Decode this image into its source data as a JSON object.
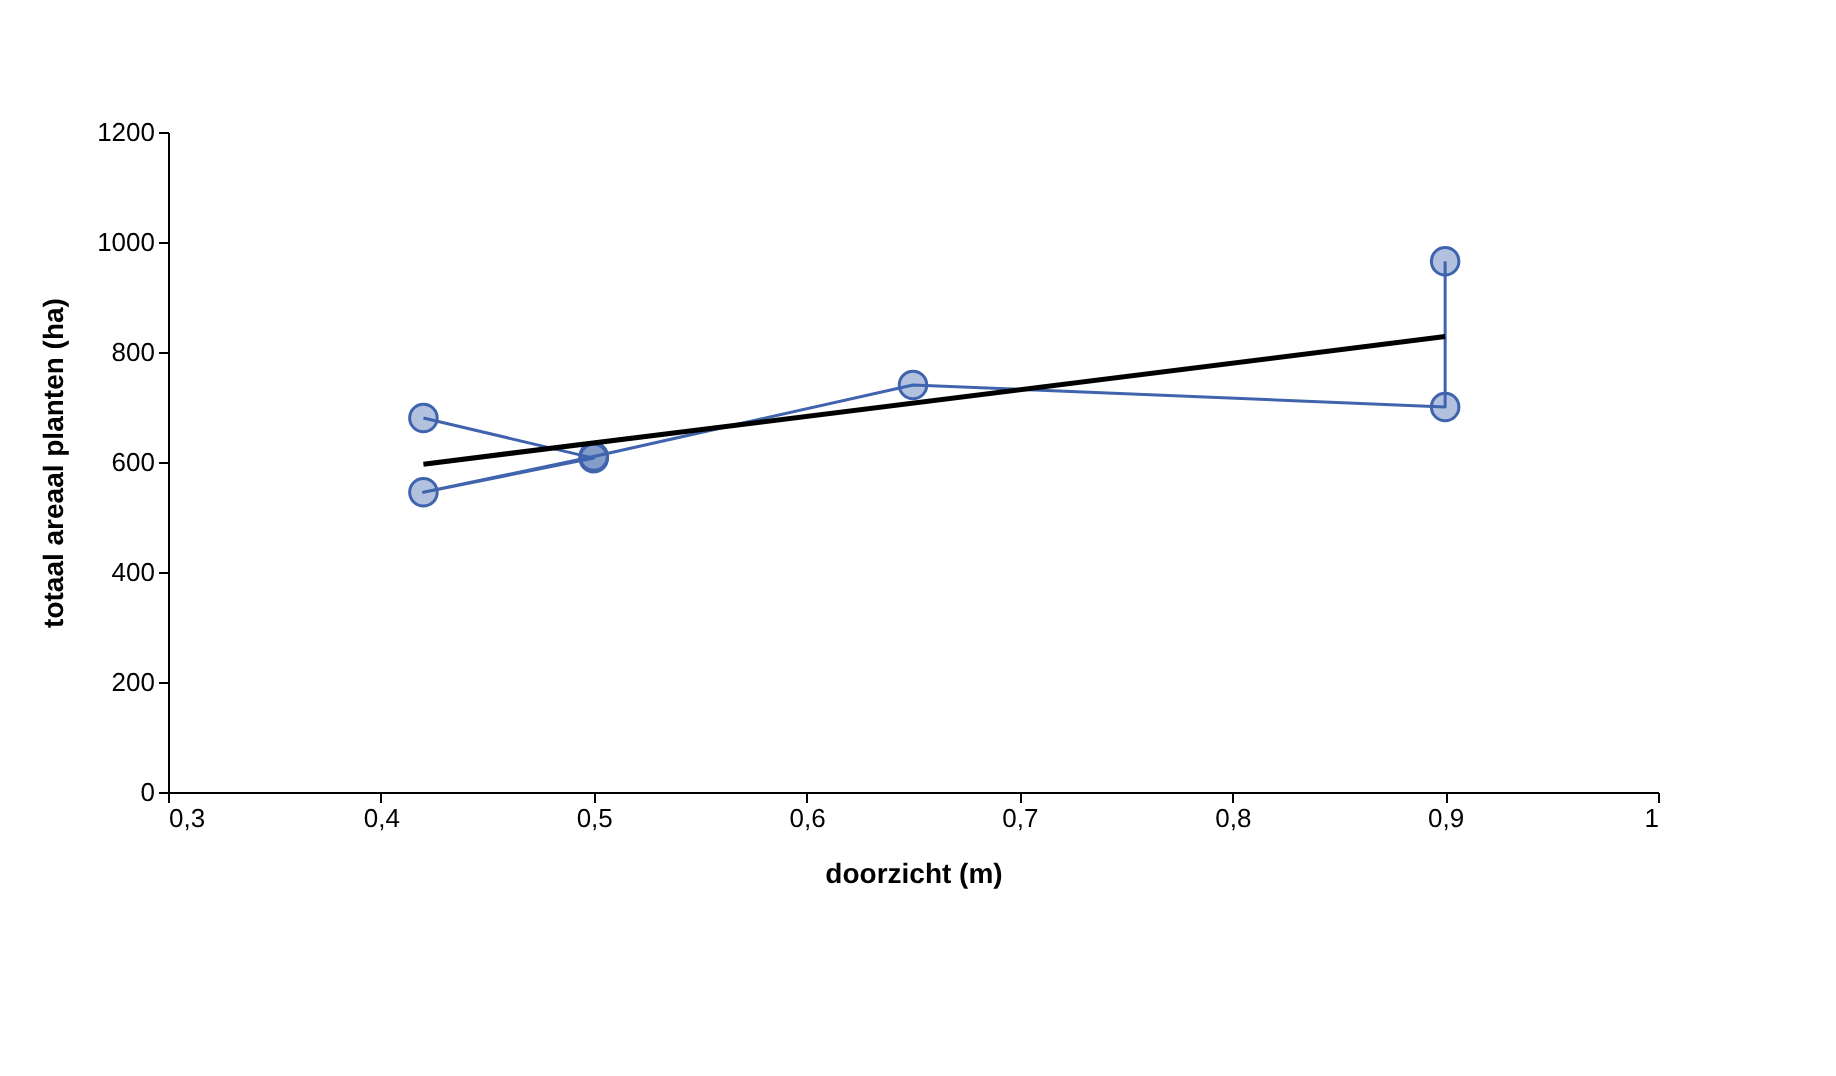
{
  "chart_data": {
    "type": "line",
    "xlabel": "doorzicht (m)",
    "ylabel": "totaal areaal planten (ha)",
    "series": [
      {
        "marker": "circle",
        "color": "#3f64ad",
        "x": [
          0.42,
          0.5,
          0.42,
          0.5,
          0.65,
          0.9,
          0.9
        ],
        "values": [
          680,
          607,
          545,
          610,
          740,
          700,
          965
        ]
      },
      {
        "marker": "none",
        "color": "#000000",
        "x": [
          0.42,
          0.9
        ],
        "values": [
          596,
          828
        ]
      }
    ],
    "xlim": [
      0.3,
      1
    ],
    "xticks": [
      {
        "value": 0.3,
        "label": "0,3"
      },
      {
        "value": 0.4,
        "label": "0,4"
      },
      {
        "value": 0.5,
        "label": "0,5"
      },
      {
        "value": 0.6,
        "label": "0,6"
      },
      {
        "value": 0.7,
        "label": "0,7"
      },
      {
        "value": 0.8,
        "label": "0,8"
      },
      {
        "value": 0.9,
        "label": "0,9"
      },
      {
        "value": 1,
        "label": "1"
      }
    ],
    "ylim": [
      0,
      1200
    ],
    "yticks": [
      0,
      200,
      400,
      600,
      800,
      1000,
      1200
    ],
    "grid": false,
    "legend": false
  }
}
